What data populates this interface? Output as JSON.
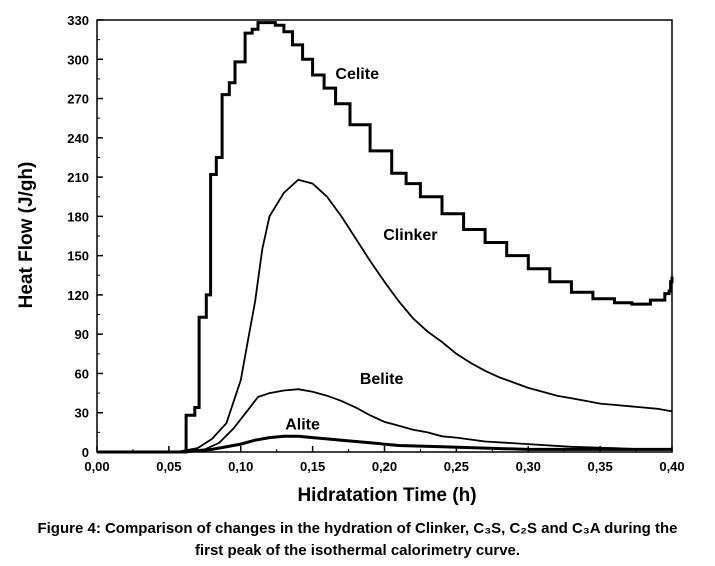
{
  "caption": {
    "line1": "Figure 4: Comparison of changes in the hydration of Clinker, C₃S, C₂S and C₃A during the",
    "line2": "first peak of the isothermal calorimetry curve."
  },
  "chart_data": {
    "type": "line",
    "xlabel": "Hidratation Time (h)",
    "ylabel": "Heat Flow (J/gh)",
    "xlim": [
      0.0,
      0.4
    ],
    "ylim": [
      0,
      330
    ],
    "x_ticks": [
      0.0,
      0.05,
      0.1,
      0.15,
      0.2,
      0.25,
      0.3,
      0.35,
      0.4
    ],
    "x_tick_labels": [
      "0,00",
      "0,05",
      "0,10",
      "0,15",
      "0,20",
      "0,25",
      "0,30",
      "0,35",
      "0,40"
    ],
    "y_ticks": [
      0,
      30,
      60,
      90,
      120,
      150,
      180,
      210,
      240,
      270,
      300,
      330
    ],
    "y_tick_labels": [
      "0",
      "30",
      "60",
      "90",
      "120",
      "150",
      "180",
      "210",
      "240",
      "270",
      "300",
      "330"
    ],
    "grid": false,
    "legend": "labels placed next to curves",
    "series": [
      {
        "name": "Celite",
        "color": "#000000",
        "stroke": "thick",
        "label_at": [
          0.181,
          285
        ],
        "points": [
          [
            0.0,
            0
          ],
          [
            0.06,
            0
          ],
          [
            0.062,
            28
          ],
          [
            0.068,
            34
          ],
          [
            0.071,
            103
          ],
          [
            0.076,
            120
          ],
          [
            0.079,
            212
          ],
          [
            0.083,
            225
          ],
          [
            0.087,
            273
          ],
          [
            0.092,
            282
          ],
          [
            0.096,
            298
          ],
          [
            0.103,
            320
          ],
          [
            0.108,
            323
          ],
          [
            0.112,
            328
          ],
          [
            0.12,
            328
          ],
          [
            0.124,
            326
          ],
          [
            0.13,
            321
          ],
          [
            0.136,
            311
          ],
          [
            0.143,
            300
          ],
          [
            0.15,
            288
          ],
          [
            0.158,
            278
          ],
          [
            0.166,
            266
          ],
          [
            0.176,
            250
          ],
          [
            0.19,
            230
          ],
          [
            0.205,
            213
          ],
          [
            0.215,
            205
          ],
          [
            0.225,
            195
          ],
          [
            0.24,
            182
          ],
          [
            0.255,
            170
          ],
          [
            0.27,
            160
          ],
          [
            0.285,
            150
          ],
          [
            0.3,
            140
          ],
          [
            0.315,
            130
          ],
          [
            0.33,
            122
          ],
          [
            0.345,
            117
          ],
          [
            0.36,
            114
          ],
          [
            0.372,
            113
          ],
          [
            0.385,
            116
          ],
          [
            0.395,
            121
          ],
          [
            0.398,
            123
          ],
          [
            0.399,
            130
          ],
          [
            0.4,
            134
          ]
        ]
      },
      {
        "name": "Clinker",
        "color": "#000000",
        "stroke": "medium",
        "label_at": [
          0.218,
          162
        ],
        "points": [
          [
            0.0,
            0
          ],
          [
            0.055,
            0
          ],
          [
            0.07,
            3
          ],
          [
            0.08,
            10
          ],
          [
            0.09,
            22
          ],
          [
            0.1,
            55
          ],
          [
            0.105,
            85
          ],
          [
            0.11,
            115
          ],
          [
            0.115,
            155
          ],
          [
            0.12,
            180
          ],
          [
            0.13,
            198
          ],
          [
            0.14,
            208
          ],
          [
            0.15,
            205
          ],
          [
            0.16,
            195
          ],
          [
            0.17,
            180
          ],
          [
            0.18,
            163
          ],
          [
            0.19,
            146
          ],
          [
            0.2,
            130
          ],
          [
            0.21,
            115
          ],
          [
            0.22,
            102
          ],
          [
            0.23,
            92
          ],
          [
            0.24,
            84
          ],
          [
            0.25,
            75
          ],
          [
            0.26,
            68
          ],
          [
            0.27,
            62
          ],
          [
            0.28,
            57
          ],
          [
            0.29,
            53
          ],
          [
            0.3,
            49
          ],
          [
            0.31,
            46
          ],
          [
            0.32,
            43
          ],
          [
            0.33,
            41
          ],
          [
            0.34,
            39
          ],
          [
            0.35,
            37
          ],
          [
            0.36,
            36
          ],
          [
            0.37,
            35
          ],
          [
            0.38,
            34
          ],
          [
            0.39,
            33
          ],
          [
            0.4,
            31
          ]
        ]
      },
      {
        "name": "Belite",
        "color": "#000000",
        "stroke": "medium",
        "label_at": [
          0.198,
          52
        ],
        "points": [
          [
            0.0,
            0
          ],
          [
            0.055,
            0
          ],
          [
            0.075,
            2
          ],
          [
            0.085,
            7
          ],
          [
            0.095,
            18
          ],
          [
            0.105,
            32
          ],
          [
            0.112,
            42
          ],
          [
            0.12,
            45
          ],
          [
            0.13,
            47
          ],
          [
            0.14,
            48
          ],
          [
            0.15,
            46
          ],
          [
            0.16,
            43
          ],
          [
            0.17,
            39
          ],
          [
            0.18,
            34
          ],
          [
            0.19,
            28
          ],
          [
            0.2,
            23
          ],
          [
            0.21,
            20
          ],
          [
            0.22,
            17
          ],
          [
            0.23,
            15
          ],
          [
            0.24,
            12
          ],
          [
            0.25,
            11
          ],
          [
            0.27,
            8
          ],
          [
            0.3,
            6
          ],
          [
            0.33,
            4
          ],
          [
            0.36,
            3
          ],
          [
            0.38,
            2
          ],
          [
            0.4,
            2
          ]
        ]
      },
      {
        "name": "Alite",
        "color": "#000000",
        "stroke": "thick",
        "label_at": [
          0.143,
          17
        ],
        "points": [
          [
            0.0,
            0
          ],
          [
            0.06,
            0
          ],
          [
            0.08,
            2
          ],
          [
            0.1,
            6
          ],
          [
            0.11,
            9
          ],
          [
            0.12,
            11
          ],
          [
            0.13,
            12
          ],
          [
            0.14,
            12
          ],
          [
            0.15,
            11
          ],
          [
            0.16,
            10
          ],
          [
            0.17,
            9
          ],
          [
            0.19,
            7
          ],
          [
            0.21,
            5
          ],
          [
            0.24,
            4
          ],
          [
            0.27,
            3
          ],
          [
            0.3,
            2
          ],
          [
            0.35,
            2
          ],
          [
            0.4,
            2
          ]
        ]
      }
    ]
  }
}
